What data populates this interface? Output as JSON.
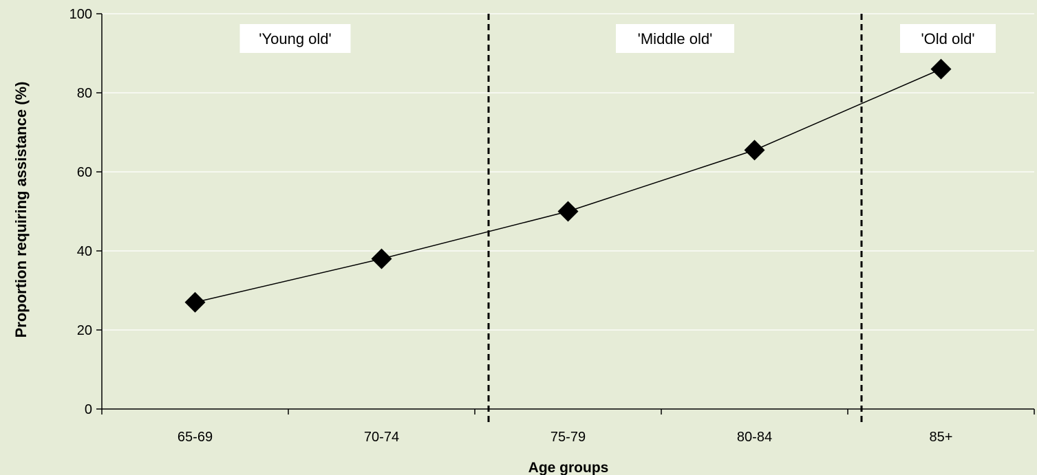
{
  "chart_data": {
    "type": "line",
    "categories": [
      "65-69",
      "70-74",
      "75-79",
      "80-84",
      "85+"
    ],
    "series": [
      {
        "values": [
          27,
          38,
          50,
          65.5,
          86
        ]
      }
    ],
    "xlabel": "Age groups",
    "ylabel": "Proportion requiring assistance (%)",
    "ylim": [
      0,
      100
    ],
    "yticks": [
      0,
      20,
      40,
      60,
      80,
      100
    ],
    "grid": "horizontal",
    "regions": [
      {
        "label": "'Young old'",
        "start": 0,
        "end": 2
      },
      {
        "label": "'Middle old'",
        "start": 2,
        "end": 4
      },
      {
        "label": "'Old old'",
        "start": 4,
        "end": 5
      }
    ],
    "colors": {
      "background": "#e6ecd7",
      "gridline": "#ffffff",
      "line": "#000000",
      "marker": "#000000",
      "label_box": "#ffffff"
    }
  }
}
